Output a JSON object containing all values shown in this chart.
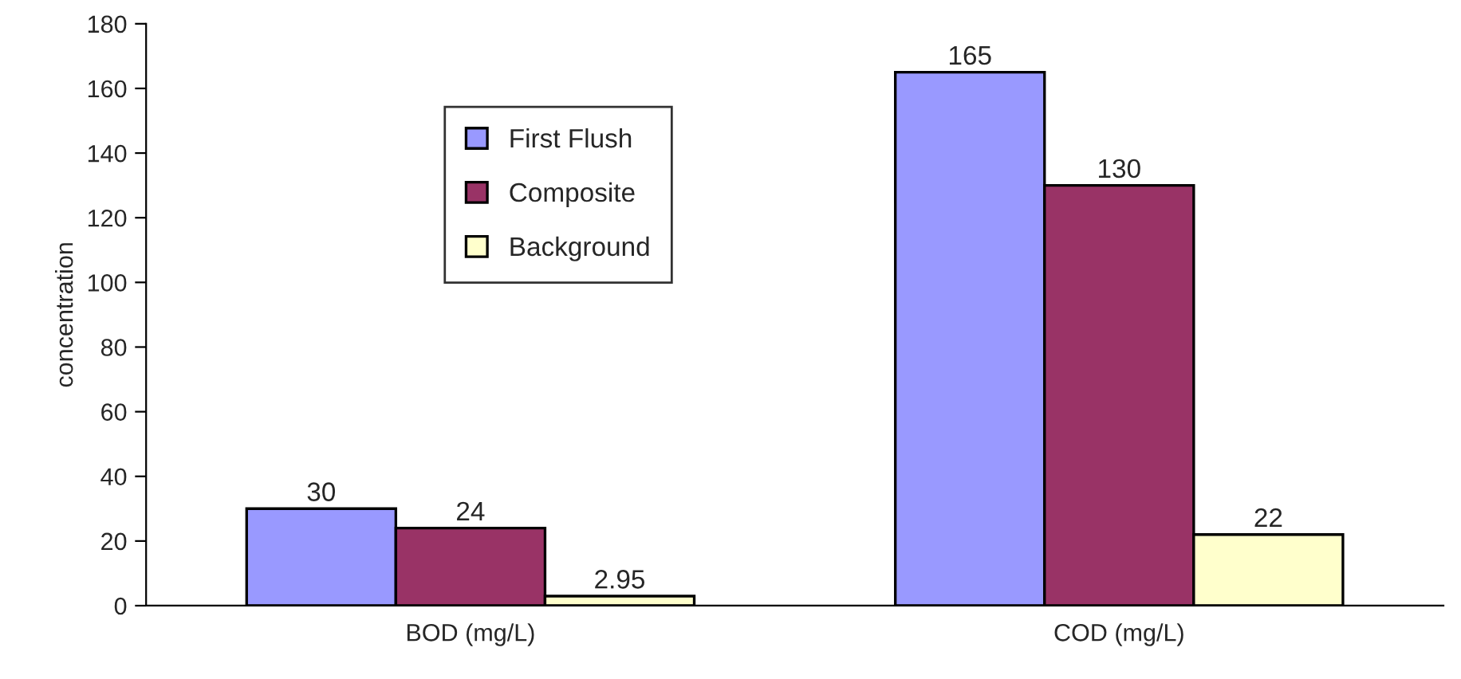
{
  "chart_data": {
    "type": "bar",
    "ylabel": "concentration",
    "categories": [
      "BOD (mg/L)",
      "COD (mg/L)"
    ],
    "series": [
      {
        "name": "First Flush",
        "color": "#9999ff",
        "values": [
          30,
          165
        ]
      },
      {
        "name": "Composite",
        "color": "#993366",
        "values": [
          24,
          130
        ]
      },
      {
        "name": "Background",
        "color": "#ffffcc",
        "values": [
          2.95,
          22
        ]
      }
    ],
    "ylim": [
      0,
      180
    ],
    "yticks": [
      0,
      20,
      40,
      60,
      80,
      100,
      120,
      140,
      160,
      180
    ],
    "data_labels": true,
    "legend": "top left",
    "grid": false
  }
}
